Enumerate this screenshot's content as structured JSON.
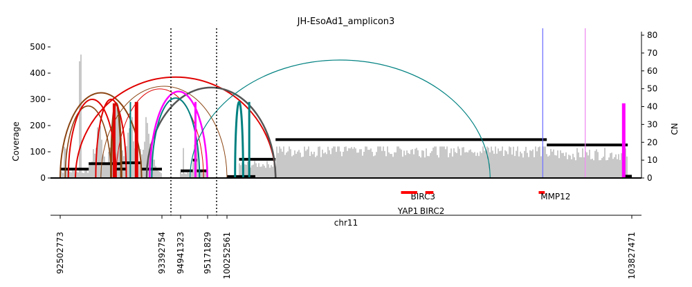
{
  "chart_data": {
    "type": "amplicon-structure",
    "title": "JH-EsoAd1_amplicon3",
    "ylabel_left": "Coverage",
    "ylabel_right": "CN",
    "xlabel": "chr11",
    "coverage_ylim": [
      0,
      560
    ],
    "cn_ylim": [
      0,
      82
    ],
    "coverage_ticks": [
      "0",
      "100",
      "200",
      "300",
      "400",
      "500"
    ],
    "cn_ticks": [
      "0",
      "10",
      "20",
      "30",
      "40",
      "50",
      "60",
      "70",
      "80"
    ],
    "x_ticks": [
      "92502773",
      "93392754",
      "94941323",
      "95171829",
      "100252561",
      "103827471"
    ],
    "segment_boundaries": [
      "93392754",
      "94941323",
      "95171829",
      "100252561"
    ],
    "coverage_peaks": [
      {
        "seg": 0,
        "pos": 0.05,
        "value": 130
      },
      {
        "seg": 0,
        "pos": 0.2,
        "value": 510
      },
      {
        "seg": 0,
        "pos": 0.38,
        "value": 200
      },
      {
        "seg": 0,
        "pos": 0.55,
        "value": 300
      },
      {
        "seg": 0,
        "pos": 0.7,
        "value": 240
      },
      {
        "seg": 0,
        "pos": 0.85,
        "value": 240
      },
      {
        "seg": 1,
        "pos": 0.1,
        "value": 130
      },
      {
        "seg": 1,
        "pos": 0.55,
        "value": 285
      },
      {
        "seg": 1,
        "pos": 0.9,
        "value": 90
      },
      {
        "seg": 2,
        "pos": 0.3,
        "value": 115
      },
      {
        "seg": 2,
        "pos": 0.6,
        "value": 110
      }
    ],
    "copy_number_segments": [
      {
        "seg": 0,
        "from": 0.0,
        "to": 0.28,
        "cn": 5
      },
      {
        "seg": 0,
        "from": 0.28,
        "to": 0.6,
        "cn": 8
      },
      {
        "seg": 0,
        "from": 0.55,
        "to": 0.65,
        "cn": 5
      },
      {
        "seg": 0,
        "from": 0.6,
        "to": 0.8,
        "cn": 8.5
      },
      {
        "seg": 0,
        "from": 0.8,
        "to": 1.0,
        "cn": 5
      },
      {
        "seg": 1,
        "from": 0.0,
        "to": 0.45,
        "cn": 4
      },
      {
        "seg": 1,
        "from": 0.45,
        "to": 0.6,
        "cn": 10
      },
      {
        "seg": 1,
        "from": 0.6,
        "to": 1.0,
        "cn": 4
      },
      {
        "seg": 2,
        "from": 0.0,
        "to": 0.07,
        "cn": 0.8
      },
      {
        "seg": 2,
        "from": 0.03,
        "to": 0.12,
        "cn": 10.5
      },
      {
        "seg": 2,
        "from": 0.12,
        "to": 0.79,
        "cn": 21.5
      },
      {
        "seg": 2,
        "from": 0.79,
        "to": 0.99,
        "cn": 18.5
      },
      {
        "seg": 2,
        "from": 0.98,
        "to": 1.0,
        "cn": 1
      }
    ],
    "breakpoint_arcs": [
      {
        "from": [
          0,
          0.0
        ],
        "to": [
          0,
          0.8
        ],
        "height": 325,
        "color": "#8b4513",
        "width": 2
      },
      {
        "from": [
          0,
          0.05
        ],
        "to": [
          0,
          0.5
        ],
        "height": 275,
        "color": "#8b4513",
        "width": 1.6
      },
      {
        "from": [
          0,
          0.5
        ],
        "to": [
          0,
          0.6
        ],
        "height": 285,
        "color": "#8b4513",
        "width": 3
      },
      {
        "from": [
          0,
          0.08
        ],
        "to": [
          0,
          0.55
        ],
        "height": 300,
        "color": "#e00000",
        "width": 2
      },
      {
        "from": [
          0,
          0.35
        ],
        "to": [
          0,
          0.65
        ],
        "height": 300,
        "color": "#e00000",
        "width": 2
      },
      {
        "from": [
          0,
          0.15
        ],
        "to": [
          2,
          0.12
        ],
        "height": 385,
        "color": "#e00000",
        "width": 2
      },
      {
        "from": [
          0,
          0.4
        ],
        "to": [
          2,
          0.0
        ],
        "height": 350,
        "color": "#8b4513",
        "width": 1
      },
      {
        "from": [
          0,
          0.55
        ],
        "to": [
          1,
          0.85
        ],
        "height": 340,
        "color": "#e00000",
        "width": 1
      },
      {
        "from": [
          0,
          0.85
        ],
        "to": [
          2,
          0.12
        ],
        "height": 345,
        "color": "#555555",
        "width": 2.5
      },
      {
        "from": [
          0,
          0.88
        ],
        "to": [
          1,
          0.99
        ],
        "height": 330,
        "color": "#ff00ff",
        "width": 2.5
      },
      {
        "from": [
          0,
          0.9
        ],
        "to": [
          1,
          0.7
        ],
        "height": 305,
        "color": "#008080",
        "width": 2
      },
      {
        "from": [
          1,
          0.35
        ],
        "to": [
          2,
          0.65
        ],
        "height": 450,
        "color": "#008080",
        "width": 1.2
      },
      {
        "from": [
          2,
          0.02
        ],
        "to": [
          2,
          0.04
        ],
        "height": 290,
        "color": "#008080",
        "width": 3
      }
    ],
    "vertical_marks": [
      {
        "seg": 0,
        "pos": 0.53,
        "from": 0,
        "to": 285,
        "color": "#e00000",
        "width": 4
      },
      {
        "seg": 0,
        "pos": 0.69,
        "from": 0,
        "to": 290,
        "color": "#008080",
        "width": 2
      },
      {
        "seg": 0,
        "pos": 0.75,
        "from": 0,
        "to": 290,
        "color": "#e00000",
        "width": 5
      },
      {
        "seg": 1,
        "pos": 0.55,
        "from": 0,
        "to": 290,
        "color": "#ff00ff",
        "width": 3
      },
      {
        "seg": 2,
        "pos": 0.055,
        "from": 0,
        "to": 290,
        "color": "#008080",
        "width": 3
      },
      {
        "seg": 2,
        "pos": 0.98,
        "from": 0,
        "to": 285,
        "color": "#ff00ff",
        "width": 5
      }
    ],
    "fold_back_lines": [
      {
        "seg": 2,
        "pos": 0.78,
        "color": "#6666ff"
      },
      {
        "seg": 2,
        "pos": 0.885,
        "color": "#ee82ee"
      }
    ],
    "genes": [
      {
        "name": "BIRC3",
        "seg": 2,
        "from": 0.43,
        "to": 0.47,
        "row": 0
      },
      {
        "name": "YAP1",
        "seg": 2,
        "from": 0.43,
        "to": 0.465,
        "row": 1
      },
      {
        "name": "BIRC2",
        "seg": 2,
        "from": 0.49,
        "to": 0.51,
        "row": 1
      },
      {
        "name": "MMP12",
        "seg": 2,
        "from": 0.77,
        "to": 0.785,
        "row": 0
      }
    ],
    "colors": {
      "coverage": "#b0b0b0",
      "cn": "#000000",
      "gene": "#ff0000"
    },
    "grid": false
  }
}
